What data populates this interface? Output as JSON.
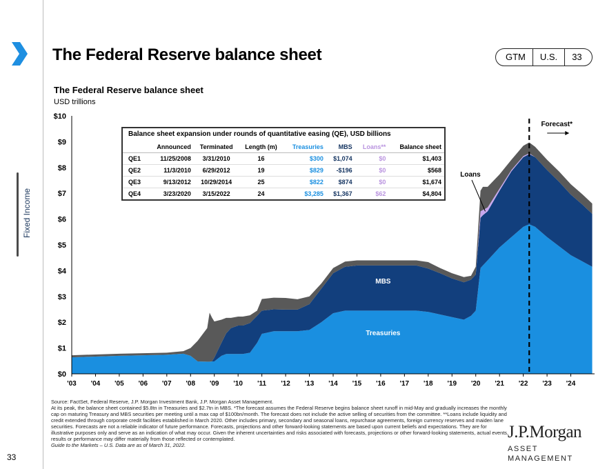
{
  "header": {
    "title": "The Federal Reserve balance sheet",
    "tags": [
      "GTM",
      "U.S.",
      "33"
    ]
  },
  "sidebar": {
    "section_label": "Fixed Income",
    "page_number": "33"
  },
  "colors": {
    "treasuries": "#1a8fe0",
    "mbs": "#123f7d",
    "loans": "#c8a8ef",
    "other": "#595959",
    "navy_text": "#12325f"
  },
  "chart_data": {
    "type": "area",
    "title": "The Federal Reserve balance sheet",
    "ylabel": "USD trillions",
    "ylim": [
      0,
      10
    ],
    "yticks": [
      "$0",
      "$1",
      "$2",
      "$3",
      "$4",
      "$5",
      "$6",
      "$7",
      "$8",
      "$9",
      "$10"
    ],
    "xrange": [
      2003,
      2025
    ],
    "xticks": [
      "'03",
      "'04",
      "'05",
      "'06",
      "'07",
      "'08",
      "'09",
      "'10",
      "'11",
      "'12",
      "'13",
      "'14",
      "'15",
      "'16",
      "'17",
      "'18",
      "'19",
      "'20",
      "'21",
      "'22",
      "'23",
      "'24"
    ],
    "stacked": true,
    "x": [
      2003.0,
      2005.0,
      2007.0,
      2007.7,
      2008.0,
      2008.3,
      2008.7,
      2008.8,
      2008.9,
      2009.0,
      2009.3,
      2009.5,
      2009.7,
      2010.0,
      2010.2,
      2010.5,
      2010.8,
      2011.0,
      2011.5,
      2012.0,
      2012.5,
      2013.0,
      2013.5,
      2014.0,
      2014.5,
      2015.0,
      2016.0,
      2017.0,
      2017.5,
      2018.0,
      2018.5,
      2019.0,
      2019.5,
      2019.8,
      2020.0,
      2020.2,
      2020.3,
      2020.5,
      2021.0,
      2021.5,
      2022.0,
      2022.25,
      2022.5,
      2023.0,
      2023.5,
      2024.0,
      2024.5,
      2024.9
    ],
    "series": [
      {
        "name": "Treasuries",
        "values": [
          0.64,
          0.7,
          0.74,
          0.78,
          0.7,
          0.48,
          0.47,
          0.47,
          0.48,
          0.48,
          0.7,
          0.77,
          0.77,
          0.77,
          0.77,
          0.82,
          1.2,
          1.55,
          1.65,
          1.65,
          1.65,
          1.7,
          2.0,
          2.35,
          2.45,
          2.45,
          2.45,
          2.45,
          2.45,
          2.4,
          2.3,
          2.2,
          2.1,
          2.25,
          2.45,
          4.1,
          4.2,
          4.4,
          4.9,
          5.3,
          5.7,
          5.8,
          5.7,
          5.3,
          4.95,
          4.6,
          4.35,
          4.15
        ]
      },
      {
        "name": "MBS",
        "values": [
          0,
          0,
          0,
          0,
          0,
          0,
          0,
          0,
          0,
          0.15,
          0.5,
          0.8,
          1.0,
          1.1,
          1.1,
          1.15,
          1.05,
          0.9,
          0.85,
          0.84,
          0.84,
          1.0,
          1.3,
          1.55,
          1.7,
          1.75,
          1.75,
          1.75,
          1.75,
          1.68,
          1.6,
          1.5,
          1.45,
          1.4,
          1.4,
          1.95,
          1.95,
          1.9,
          2.2,
          2.55,
          2.7,
          2.72,
          2.7,
          2.6,
          2.5,
          2.35,
          2.2,
          2.05
        ]
      },
      {
        "name": "Loans",
        "values": [
          0,
          0,
          0,
          0,
          0,
          0,
          0,
          0,
          0,
          0,
          0,
          0,
          0,
          0,
          0,
          0,
          0,
          0,
          0,
          0,
          0,
          0,
          0,
          0,
          0,
          0,
          0,
          0,
          0,
          0,
          0,
          0,
          0,
          0,
          0,
          0.25,
          0.2,
          0.15,
          0.08,
          0.05,
          0.04,
          0.03,
          0,
          0,
          0,
          0,
          0,
          0
        ]
      },
      {
        "name": "Other",
        "values": [
          0.08,
          0.08,
          0.08,
          0.1,
          0.3,
          0.8,
          1.3,
          1.9,
          1.7,
          1.4,
          0.9,
          0.6,
          0.4,
          0.35,
          0.35,
          0.3,
          0.2,
          0.45,
          0.45,
          0.45,
          0.4,
          0.3,
          0.2,
          0.2,
          0.2,
          0.2,
          0.2,
          0.2,
          0.2,
          0.25,
          0.2,
          0.2,
          0.2,
          0.15,
          0.3,
          0.8,
          0.9,
          0.8,
          0.55,
          0.4,
          0.4,
          0.42,
          0.4,
          0.4,
          0.4,
          0.4,
          0.4,
          0.4
        ]
      }
    ],
    "forecast_start": 2022.25,
    "annotations": [
      "Forecast*",
      "Loans",
      "MBS",
      "Treasuries"
    ],
    "table": {
      "title": "Balance sheet expansion under rounds of quantitative easing (QE), USD billions",
      "columns": [
        "",
        "Announced",
        "Terminated",
        "Length (m)",
        "Treasuries",
        "MBS",
        "Loans**",
        "Balance sheet"
      ],
      "rows": [
        [
          "QE1",
          "11/25/2008",
          "3/31/2010",
          "16",
          "$300",
          "$1,074",
          "$0",
          "$1,403"
        ],
        [
          "QE2",
          "11/3/2010",
          "6/29/2012",
          "19",
          "$829",
          "-$196",
          "$0",
          "$568"
        ],
        [
          "QE3",
          "9/13/2012",
          "10/29/2014",
          "25",
          "$822",
          "$874",
          "$0",
          "$1,674"
        ],
        [
          "QE4",
          "3/23/2020",
          "3/15/2022",
          "24",
          "$3,285",
          "$1,367",
          "$62",
          "$4,804"
        ]
      ]
    }
  },
  "footnote": {
    "source": "Source: FactSet, Federal Reserve, J.P. Morgan Investment Bank, J.P. Morgan Asset Management.",
    "body": "At its peak, the balance sheet contained $5.8tn in Treasuries and $2.7tn in MBS. *The forecast assumes the Federal Reserve begins balance sheet runoff in mid-May and gradually increases the monthly cap on maturing Treasury and MBS securities per meeting until a max cap of $100bn/month. The forecast does not include the active selling of securities from the committee. **Loans include liquidity and credit extended through corporate credit facilities established in March 2020. Other includes primary, secondary and seasonal loans, repurchase agreements, foreign currency reserves and maiden lane securities. Forecasts are not a reliable indicator of future performance. Forecasts, projections and other forward-looking statements are based upon current beliefs and expectations. They are for illustrative purposes only and serve as an indication of what may occur. Given the inherent uncertainties and risks associated with forecasts, projections or other forward-looking statements, actual events, results or performance may differ materially from those reflected or contemplated.",
    "guide": "Guide to the Markets – U.S. Data are as of March 31, 2022."
  },
  "logo": {
    "name": "J.P.Morgan",
    "subtitle": "ASSET MANAGEMENT"
  }
}
